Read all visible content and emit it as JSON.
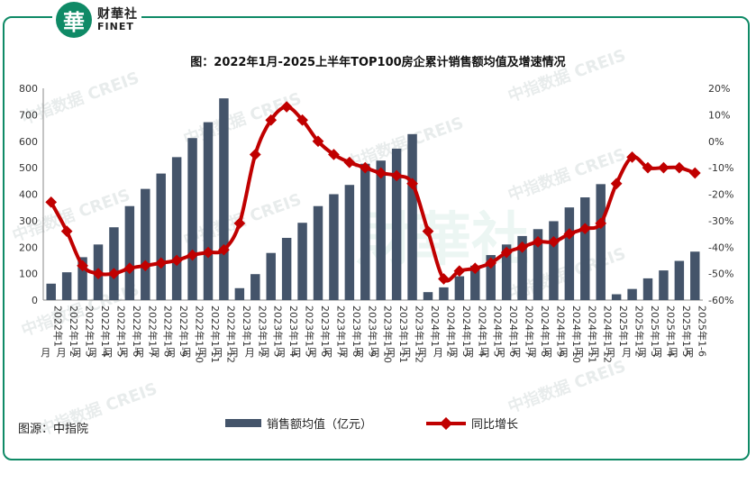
{
  "logo": {
    "cn": "财華社",
    "en": "FINET",
    "mark": "華"
  },
  "source": "图源：中指院",
  "watermark": "中指数据 CREIS",
  "chart_data": {
    "type": "bar+line",
    "title": "图：2022年1月-2025上半年TOP100房企累计销售额均值及增速情况",
    "categories": [
      "2022年1月",
      "2022年1-2月",
      "2022年1-3月",
      "2022年1-4月",
      "2022年1-5月",
      "2022年1-6月",
      "2022年1-7月",
      "2022年1-8月",
      "2022年1-9月",
      "2022年1-10月",
      "2022年1-11月",
      "2022年1-12月",
      "2023年1月",
      "2023年1-2月",
      "2023年1-3月",
      "2023年1-4月",
      "2023年1-5月",
      "2023年1-6月",
      "2023年1-7月",
      "2023年1-8月",
      "2023年1-9月",
      "2023年1-10月",
      "2023年1-11月",
      "2023年1-12月",
      "2024年1月",
      "2024年1-2月",
      "2024年1-3月",
      "2024年1-4月",
      "2024年1-5月",
      "2024年1-6月",
      "2024年1-7月",
      "2024年1-8月",
      "2024年1-9月",
      "2024年1-10月",
      "2024年1-11月",
      "2024年1-12月",
      "2025年1月",
      "2025年1-2月",
      "2025年1-3月",
      "2025年1-4月",
      "2025年1-5月",
      "2025年1-6月"
    ],
    "series": [
      {
        "name": "销售额均值（亿元）",
        "type": "bar",
        "axis": "left",
        "color": "#44546a",
        "values": [
          62,
          105,
          162,
          210,
          275,
          355,
          420,
          478,
          540,
          612,
          672,
          762,
          45,
          98,
          178,
          235,
          292,
          355,
          400,
          435,
          515,
          527,
          572,
          627,
          30,
          48,
          90,
          130,
          170,
          210,
          242,
          268,
          298,
          350,
          388,
          438,
          22,
          42,
          82,
          112,
          148,
          183
        ]
      },
      {
        "name": "同比增长",
        "type": "line",
        "axis": "right",
        "color": "#c00000",
        "values": [
          -23,
          -34,
          -47,
          -50,
          -50,
          -48,
          -47,
          -46,
          -45,
          -43,
          -42,
          -41,
          -31,
          -5,
          8,
          13,
          8,
          0,
          -5,
          -8,
          -10,
          -12,
          -13,
          -16,
          -34,
          -52,
          -49,
          -48,
          -46,
          -42,
          -40,
          -38,
          -38,
          -35,
          -33,
          -31,
          -16,
          -6,
          -10,
          -10,
          -10,
          -12
        ]
      }
    ],
    "y_left": {
      "min": 0,
      "max": 800,
      "ticks": [
        0,
        100,
        200,
        300,
        400,
        500,
        600,
        700,
        800
      ]
    },
    "y_right": {
      "min": -60,
      "max": 20,
      "ticks": [
        "-60%",
        "-50%",
        "-40%",
        "-30%",
        "-20%",
        "-10%",
        "0%",
        "10%",
        "20%"
      ]
    },
    "legend": {
      "position": "bottom",
      "bar_label": "销售额均值（亿元）",
      "line_label": "同比增长"
    }
  }
}
